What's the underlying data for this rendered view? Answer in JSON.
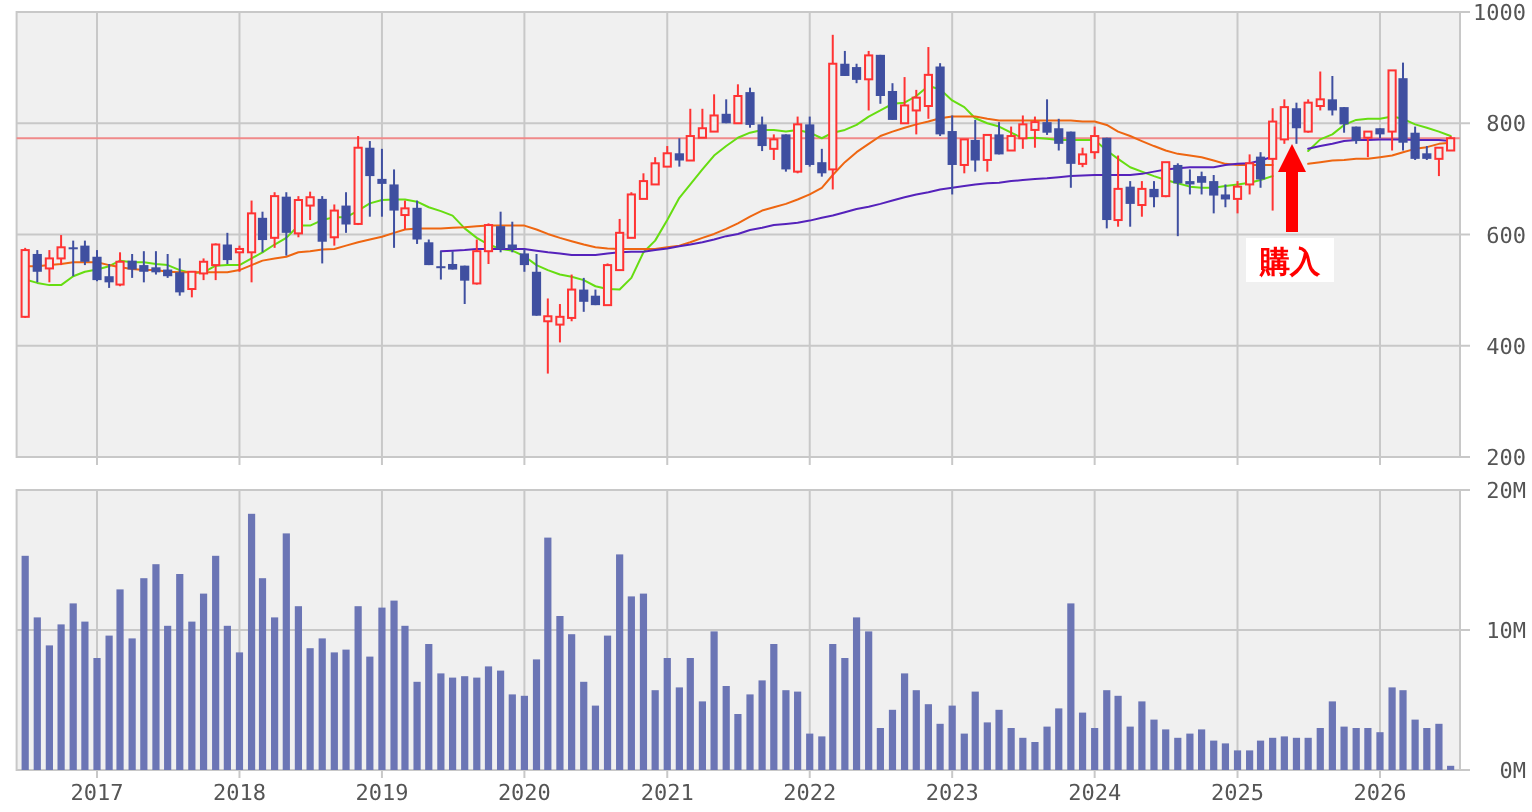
{
  "chart_data": [
    {
      "type": "candlestick",
      "x": [
        "2016-07",
        "2016-08",
        "2016-09",
        "2016-10",
        "2016-11",
        "2016-12",
        "2017-01",
        "2017-02",
        "2017-03",
        "2017-04",
        "2017-05",
        "2017-06",
        "2017-07",
        "2017-08",
        "2017-09",
        "2017-10",
        "2017-11",
        "2017-12",
        "2018-01",
        "2018-02",
        "2018-03",
        "2018-04",
        "2018-05",
        "2018-06",
        "2018-07",
        "2018-08",
        "2018-09",
        "2018-10",
        "2018-11",
        "2018-12",
        "2019-01",
        "2019-02",
        "2019-03",
        "2019-04",
        "2019-05",
        "2019-06",
        "2019-07",
        "2019-08",
        "2019-09",
        "2019-10",
        "2019-11",
        "2019-12",
        "2020-01",
        "2020-02",
        "2020-03",
        "2020-04",
        "2020-05",
        "2020-06",
        "2020-07",
        "2020-08",
        "2020-09",
        "2020-10",
        "2020-11",
        "2020-12",
        "2021-01",
        "2021-02",
        "2021-03",
        "2021-04",
        "2021-05",
        "2021-06",
        "2021-07",
        "2021-08",
        "2021-09",
        "2021-10",
        "2021-11",
        "2021-12",
        "2022-01",
        "2022-02",
        "2022-03",
        "2022-04",
        "2022-05",
        "2022-06",
        "2022-07",
        "2022-08",
        "2022-09",
        "2022-10",
        "2022-11",
        "2022-12",
        "2023-01",
        "2023-02",
        "2023-03",
        "2023-04",
        "2023-05",
        "2023-06",
        "2023-07",
        "2023-08",
        "2023-09",
        "2023-10",
        "2023-11",
        "2023-12",
        "2024-01",
        "2024-02",
        "2024-03",
        "2024-04",
        "2024-05",
        "2024-06",
        "2024-07",
        "2024-08",
        "2024-09",
        "2024-10",
        "2024-11",
        "2024-12",
        "2025-01",
        "2025-02",
        "2025-03",
        "2025-04",
        "2025-05",
        "2025-06",
        "2025-07",
        "2025-08",
        "2025-09",
        "2025-10",
        "2025-11",
        "2025-12",
        "2026-01",
        "2026-02",
        "2026-03",
        "2026-04",
        "2026-05",
        "2026-06",
        "2026-07"
      ],
      "ohlc": [
        [
          452,
          576,
          450,
          572
        ],
        [
          565,
          572,
          514,
          533
        ],
        [
          539,
          572,
          514,
          557
        ],
        [
          557,
          599,
          545,
          577
        ],
        [
          577,
          589,
          525,
          575
        ],
        [
          580,
          589,
          545,
          551
        ],
        [
          560,
          572,
          516,
          518
        ],
        [
          525,
          547,
          504,
          514
        ],
        [
          510,
          568,
          507,
          551
        ],
        [
          553,
          565,
          522,
          537
        ],
        [
          545,
          570,
          514,
          533
        ],
        [
          541,
          570,
          528,
          532
        ],
        [
          537,
          565,
          522,
          525
        ],
        [
          532,
          557,
          490,
          496
        ],
        [
          502,
          533,
          487,
          533
        ],
        [
          530,
          557,
          518,
          551
        ],
        [
          545,
          584,
          518,
          582
        ],
        [
          582,
          603,
          547,
          554
        ],
        [
          568,
          580,
          533,
          574
        ],
        [
          568,
          661,
          514,
          638
        ],
        [
          630,
          641,
          568,
          590
        ],
        [
          594,
          676,
          576,
          669
        ],
        [
          668,
          676,
          562,
          603
        ],
        [
          602,
          669,
          595,
          662
        ],
        [
          652,
          677,
          626,
          667
        ],
        [
          664,
          669,
          548,
          587
        ],
        [
          595,
          654,
          580,
          643
        ],
        [
          652,
          676,
          603,
          618
        ],
        [
          619,
          777,
          617,
          756
        ],
        [
          756,
          768,
          632,
          705
        ],
        [
          700,
          754,
          632,
          691
        ],
        [
          690,
          717,
          576,
          643
        ],
        [
          635,
          661,
          609,
          647
        ],
        [
          648,
          661,
          583,
          591
        ],
        [
          586,
          591,
          545,
          545
        ],
        [
          543,
          570,
          519,
          541
        ],
        [
          547,
          570,
          537,
          537
        ],
        [
          544,
          544,
          475,
          517
        ],
        [
          512,
          591,
          510,
          570
        ],
        [
          570,
          620,
          547,
          617
        ],
        [
          615,
          641,
          568,
          574
        ],
        [
          582,
          623,
          568,
          574
        ],
        [
          566,
          574,
          533,
          545
        ],
        [
          533,
          565,
          454,
          454
        ],
        [
          444,
          485,
          350,
          453
        ],
        [
          438,
          475,
          406,
          452
        ],
        [
          450,
          528,
          444,
          501
        ],
        [
          501,
          522,
          461,
          479
        ],
        [
          490,
          501,
          473,
          473
        ],
        [
          473,
          548,
          473,
          545
        ],
        [
          536,
          628,
          536,
          603
        ],
        [
          594,
          676,
          594,
          672
        ],
        [
          664,
          710,
          664,
          696
        ],
        [
          690,
          739,
          690,
          728
        ],
        [
          722,
          759,
          722,
          746
        ],
        [
          746,
          773,
          722,
          733
        ],
        [
          733,
          826,
          733,
          777
        ],
        [
          774,
          826,
          774,
          791
        ],
        [
          785,
          852,
          785,
          814
        ],
        [
          817,
          843,
          800,
          800
        ],
        [
          800,
          870,
          800,
          849
        ],
        [
          856,
          864,
          792,
          797
        ],
        [
          798,
          812,
          750,
          759
        ],
        [
          754,
          780,
          734,
          771
        ],
        [
          780,
          780,
          713,
          717
        ],
        [
          713,
          812,
          710,
          798
        ],
        [
          798,
          812,
          722,
          725
        ],
        [
          730,
          754,
          704,
          710
        ],
        [
          717,
          959,
          681,
          907
        ],
        [
          907,
          930,
          885,
          885
        ],
        [
          901,
          907,
          872,
          878
        ],
        [
          879,
          930,
          823,
          922
        ],
        [
          923,
          923,
          835,
          849
        ],
        [
          858,
          872,
          806,
          806
        ],
        [
          800,
          883,
          800,
          832
        ],
        [
          823,
          860,
          780,
          846
        ],
        [
          831,
          937,
          808,
          887
        ],
        [
          902,
          908,
          777,
          780
        ],
        [
          786,
          814,
          672,
          725
        ],
        [
          725,
          771,
          710,
          771
        ],
        [
          770,
          806,
          713,
          733
        ],
        [
          734,
          779,
          713,
          779
        ],
        [
          780,
          802,
          744,
          744
        ],
        [
          751,
          794,
          751,
          777
        ],
        [
          773,
          814,
          754,
          798
        ],
        [
          788,
          812,
          756,
          802
        ],
        [
          802,
          843,
          779,
          783
        ],
        [
          791,
          808,
          751,
          763
        ],
        [
          785,
          785,
          684,
          727
        ],
        [
          727,
          756,
          721,
          744
        ],
        [
          748,
          794,
          736,
          777
        ],
        [
          774,
          774,
          611,
          626
        ],
        [
          626,
          742,
          614,
          682
        ],
        [
          686,
          696,
          614,
          655
        ],
        [
          653,
          696,
          632,
          682
        ],
        [
          682,
          696,
          649,
          667
        ],
        [
          669,
          730,
          667,
          730
        ],
        [
          725,
          728,
          597,
          692
        ],
        [
          696,
          717,
          672,
          690
        ],
        [
          705,
          713,
          672,
          693
        ],
        [
          696,
          707,
          638,
          670
        ],
        [
          672,
          690,
          649,
          663
        ],
        [
          664,
          696,
          638,
          686
        ],
        [
          690,
          744,
          672,
          728
        ],
        [
          740,
          748,
          684,
          699
        ],
        [
          736,
          827,
          643,
          803
        ],
        [
          771,
          843,
          763,
          829
        ],
        [
          827,
          837,
          763,
          791
        ],
        [
          785,
          843,
          783,
          837
        ],
        [
          831,
          893,
          823,
          843
        ],
        [
          843,
          885,
          814,
          823
        ],
        [
          829,
          829,
          783,
          798
        ],
        [
          794,
          794,
          763,
          768
        ],
        [
          774,
          785,
          739,
          785
        ],
        [
          791,
          791,
          773,
          780
        ],
        [
          785,
          895,
          751,
          895
        ],
        [
          881,
          909,
          751,
          765
        ],
        [
          783,
          794,
          734,
          736
        ],
        [
          746,
          759,
          734,
          736
        ],
        [
          736,
          756,
          705,
          756
        ],
        [
          751,
          777,
          751,
          773
        ]
      ],
      "series": [
        {
          "type": "line",
          "color": "#66dd11",
          "values": [
            519,
            513,
            509,
            509,
            525,
            533,
            537,
            543,
            553,
            550,
            550,
            547,
            545,
            536,
            531,
            532,
            544,
            545,
            545,
            557,
            568,
            582,
            594,
            616,
            616,
            626,
            631,
            631,
            643,
            656,
            662,
            663,
            663,
            659,
            649,
            642,
            634,
            611,
            594,
            582,
            574,
            571,
            561,
            545,
            536,
            528,
            524,
            518,
            507,
            502,
            501,
            522,
            568,
            589,
            626,
            666,
            690,
            717,
            742,
            759,
            774,
            783,
            788,
            788,
            785,
            788,
            783,
            773,
            783,
            788,
            797,
            812,
            823,
            835,
            837,
            849,
            867,
            861,
            841,
            829,
            809,
            800,
            794,
            783,
            773,
            774,
            772,
            770,
            770,
            770,
            770,
            751,
            736,
            721,
            713,
            705,
            698,
            692,
            686,
            684,
            684,
            687,
            690,
            693,
            698,
            705,
            null,
            null,
            750,
            771,
            780,
            797,
            806,
            808,
            808,
            812,
            808,
            798,
            792,
            785,
            777
          ]
        },
        {
          "type": "line",
          "color": "#ee6611",
          "values": [
            543,
            543,
            545,
            547,
            550,
            550,
            550,
            545,
            541,
            538,
            536,
            536,
            533,
            532,
            532,
            532,
            532,
            532,
            536,
            545,
            553,
            557,
            560,
            568,
            570,
            573,
            574,
            580,
            586,
            591,
            596,
            603,
            609,
            611,
            611,
            611,
            612,
            613,
            615,
            616,
            616,
            616,
            616,
            609,
            601,
            594,
            588,
            582,
            577,
            575,
            574,
            574,
            574,
            574,
            577,
            580,
            586,
            594,
            601,
            610,
            620,
            632,
            643,
            649,
            655,
            663,
            672,
            684,
            707,
            730,
            748,
            763,
            777,
            785,
            792,
            798,
            803,
            809,
            812,
            812,
            812,
            808,
            805,
            805,
            805,
            805,
            805,
            805,
            805,
            803,
            803,
            797,
            785,
            777,
            768,
            759,
            751,
            745,
            742,
            739,
            733,
            727,
            725,
            725,
            725,
            725,
            null,
            null,
            727,
            730,
            733,
            734,
            736,
            736,
            739,
            742,
            748,
            754,
            757,
            763,
            765
          ]
        },
        {
          "type": "line",
          "color": "#5522bb",
          "values": [
            null,
            null,
            null,
            null,
            null,
            null,
            null,
            null,
            null,
            null,
            null,
            null,
            null,
            null,
            null,
            null,
            null,
            null,
            null,
            null,
            null,
            null,
            null,
            null,
            null,
            null,
            null,
            null,
            null,
            null,
            null,
            null,
            null,
            null,
            null,
            570,
            571,
            572,
            574,
            574,
            574,
            574,
            574,
            571,
            568,
            566,
            563,
            563,
            563,
            566,
            568,
            569,
            569,
            572,
            575,
            579,
            582,
            586,
            591,
            597,
            601,
            608,
            612,
            617,
            619,
            621,
            625,
            630,
            634,
            640,
            646,
            650,
            655,
            661,
            667,
            672,
            676,
            681,
            684,
            687,
            690,
            692,
            693,
            696,
            698,
            700,
            701,
            703,
            705,
            706,
            707,
            707,
            707,
            707,
            709,
            713,
            717,
            719,
            721,
            721,
            721,
            725,
            727,
            728,
            733,
            740,
            null,
            null,
            754,
            759,
            763,
            768,
            770,
            770,
            771,
            771,
            771,
            770,
            770,
            770,
            768
          ]
        }
      ],
      "xlim": [
        "2016-06-09",
        "2026-07-25"
      ],
      "xticks": [
        "2017",
        "2018",
        "2019",
        "2020",
        "2021",
        "2022",
        "2023",
        "2024",
        "2025",
        "2026"
      ],
      "ylim": [
        200,
        1000
      ],
      "yticks": [
        200,
        400,
        600,
        800,
        1000
      ],
      "tick_labels": "y",
      "grid": true,
      "ref_lines": [
        {
          "axis": "y",
          "value": 773,
          "color": "#f08a8a"
        }
      ],
      "annotations": [
        "購入"
      ]
    },
    {
      "type": "bar",
      "x": [
        "2016-07",
        "2016-08",
        "2016-09",
        "2016-10",
        "2016-11",
        "2016-12",
        "2017-01",
        "2017-02",
        "2017-03",
        "2017-04",
        "2017-05",
        "2017-06",
        "2017-07",
        "2017-08",
        "2017-09",
        "2017-10",
        "2017-11",
        "2017-12",
        "2018-01",
        "2018-02",
        "2018-03",
        "2018-04",
        "2018-05",
        "2018-06",
        "2018-07",
        "2018-08",
        "2018-09",
        "2018-10",
        "2018-11",
        "2018-12",
        "2019-01",
        "2019-02",
        "2019-03",
        "2019-04",
        "2019-05",
        "2019-06",
        "2019-07",
        "2019-08",
        "2019-09",
        "2019-10",
        "2019-11",
        "2019-12",
        "2020-01",
        "2020-02",
        "2020-03",
        "2020-04",
        "2020-05",
        "2020-06",
        "2020-07",
        "2020-08",
        "2020-09",
        "2020-10",
        "2020-11",
        "2020-12",
        "2021-01",
        "2021-02",
        "2021-03",
        "2021-04",
        "2021-05",
        "2021-06",
        "2021-07",
        "2021-08",
        "2021-09",
        "2021-10",
        "2021-11",
        "2021-12",
        "2022-01",
        "2022-02",
        "2022-03",
        "2022-04",
        "2022-05",
        "2022-06",
        "2022-07",
        "2022-08",
        "2022-09",
        "2022-10",
        "2022-11",
        "2022-12",
        "2023-01",
        "2023-02",
        "2023-03",
        "2023-04",
        "2023-05",
        "2023-06",
        "2023-07",
        "2023-08",
        "2023-09",
        "2023-10",
        "2023-11",
        "2023-12",
        "2024-01",
        "2024-02",
        "2024-03",
        "2024-04",
        "2024-05",
        "2024-06",
        "2024-07",
        "2024-08",
        "2024-09",
        "2024-10",
        "2024-11",
        "2024-12",
        "2025-01",
        "2025-02",
        "2025-03",
        "2025-04",
        "2025-05",
        "2025-06",
        "2025-07",
        "2025-08",
        "2025-09",
        "2025-10",
        "2025-11",
        "2025-12",
        "2026-01",
        "2026-02",
        "2026-03",
        "2026-04",
        "2026-05",
        "2026-06",
        "2026-07"
      ],
      "series": [
        {
          "color": "#6b75b5",
          "values": [
            15.3,
            10.9,
            8.9,
            10.4,
            11.9,
            10.6,
            8.0,
            9.6,
            12.9,
            9.4,
            13.7,
            14.7,
            10.3,
            14.0,
            10.6,
            12.6,
            15.3,
            10.3,
            8.4,
            18.3,
            13.7,
            10.9,
            16.9,
            11.7,
            8.7,
            9.4,
            8.4,
            8.6,
            11.7,
            8.1,
            11.6,
            12.1,
            10.3,
            6.3,
            9.0,
            6.9,
            6.6,
            6.7,
            6.6,
            7.4,
            7.1,
            5.4,
            5.3,
            7.9,
            16.6,
            11.0,
            9.7,
            6.3,
            4.6,
            9.6,
            15.4,
            12.4,
            12.6,
            5.7,
            8.0,
            5.9,
            8.0,
            4.9,
            9.9,
            6.0,
            4.0,
            5.4,
            6.4,
            9.0,
            5.7,
            5.6,
            2.6,
            2.4,
            9.0,
            8.0,
            10.9,
            9.9,
            3.0,
            4.3,
            6.9,
            5.7,
            4.7,
            3.3,
            4.6,
            2.6,
            5.6,
            3.4,
            4.3,
            3.0,
            2.3,
            2.0,
            3.1,
            4.4,
            11.9,
            4.1,
            3.0,
            5.7,
            5.3,
            3.1,
            4.9,
            3.6,
            2.9,
            2.3,
            2.6,
            2.9,
            2.1,
            1.9,
            1.4,
            1.4,
            2.1,
            2.3,
            2.4,
            2.3,
            2.3,
            3.0,
            4.9,
            3.1,
            3.0,
            3.0,
            2.7,
            5.9,
            5.7,
            3.6,
            3.0,
            3.3,
            0.3
          ]
        }
      ],
      "xlim": [
        "2016-06-09",
        "2026-07-25"
      ],
      "xticks": [
        "2017",
        "2018",
        "2019",
        "2020",
        "2021",
        "2022",
        "2023",
        "2024",
        "2025",
        "2026"
      ],
      "ylim": [
        0,
        20
      ],
      "yticks": [
        {
          "value": 0,
          "label": "0M"
        },
        {
          "value": 10,
          "label": "10M"
        },
        {
          "value": 20,
          "label": "20M"
        }
      ],
      "grid": true
    }
  ]
}
